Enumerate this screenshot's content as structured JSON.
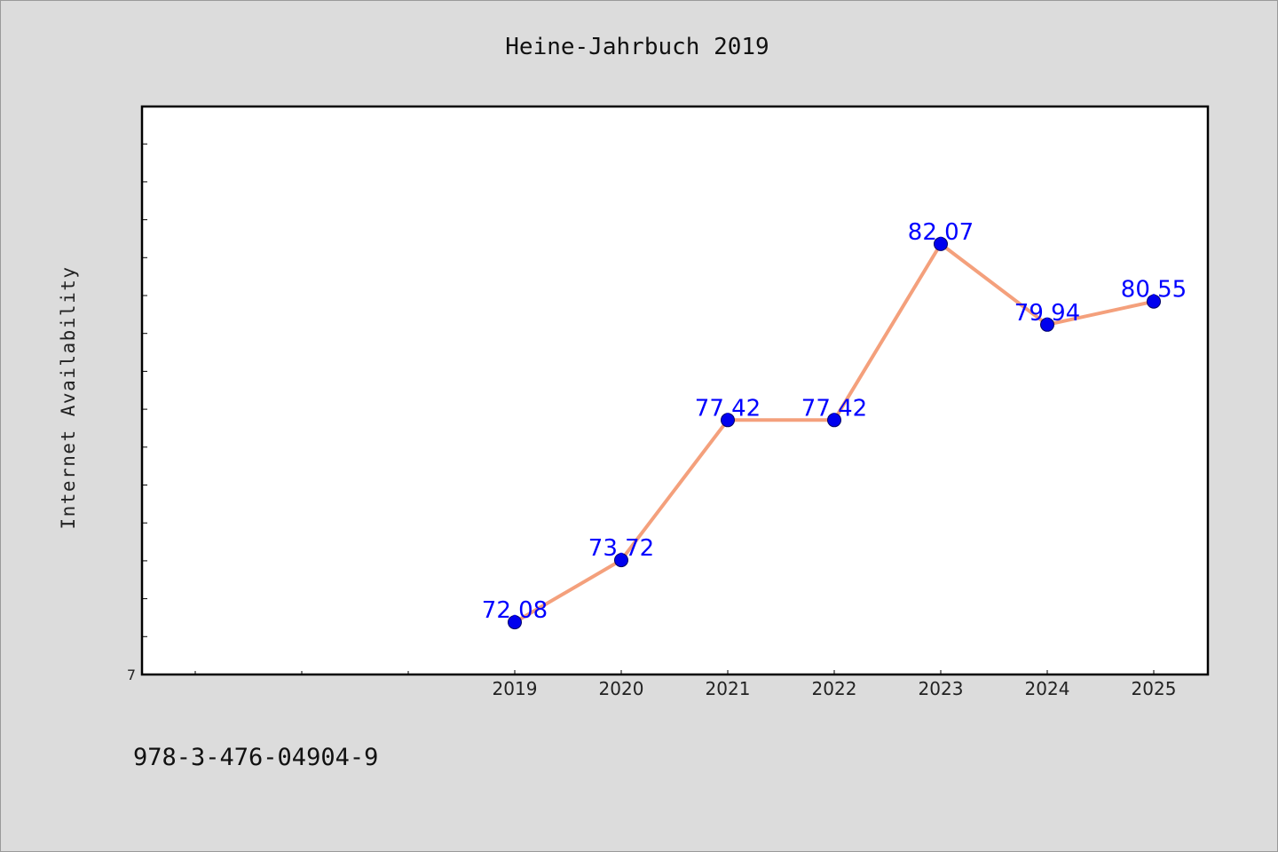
{
  "chart_data": {
    "type": "line",
    "title": "Heine-Jahrbuch 2019",
    "xlabel": "",
    "ylabel": "Internet Availability",
    "categories": [
      "2019",
      "2020",
      "2021",
      "2022",
      "2023",
      "2024",
      "2025"
    ],
    "values": [
      72.08,
      73.72,
      77.42,
      77.42,
      82.07,
      79.94,
      80.55
    ],
    "data_labels": [
      "72.08",
      "73.72",
      "77.42",
      "77.42",
      "82.07",
      "79.94",
      "80.55"
    ],
    "ytick_labels": [
      "7"
    ],
    "ylim": [
      70.7,
      85.7
    ],
    "grid": false,
    "legend": "none",
    "colors": {
      "line": "#f4a07c",
      "marker": "#0000ee",
      "label": "#0000ff",
      "background": "#dcdcdc",
      "plot_area": "#ffffff"
    }
  },
  "footer": {
    "isbn": "978-3-476-04904-9"
  }
}
